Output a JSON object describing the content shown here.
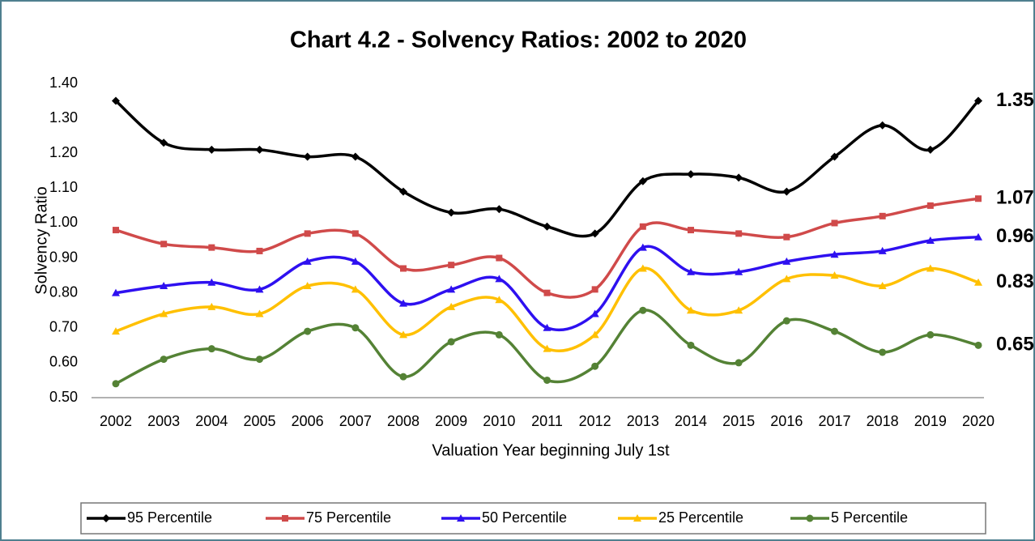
{
  "chart_data": {
    "type": "line",
    "title": "Chart 4.2 - Solvency Ratios: 2002 to 2020",
    "x_label": "Valuation Year beginning July 1st",
    "y_label": "Solvency Ratio",
    "categories": [
      "2002",
      "2003",
      "2004",
      "2005",
      "2006",
      "2007",
      "2008",
      "2009",
      "2010",
      "2011",
      "2012",
      "2013",
      "2014",
      "2015",
      "2016",
      "2017",
      "2018",
      "2019",
      "2020"
    ],
    "ylim": [
      0.5,
      1.4
    ],
    "yticks": [
      {
        "value": 0.5,
        "label": "0.50"
      },
      {
        "value": 0.6,
        "label": "0.60"
      },
      {
        "value": 0.7,
        "label": "0.70"
      },
      {
        "value": 0.8,
        "label": "0.80"
      },
      {
        "value": 0.9,
        "label": "0.90"
      },
      {
        "value": 1.0,
        "label": "1.00"
      },
      {
        "value": 1.1,
        "label": "1.10"
      },
      {
        "value": 1.2,
        "label": "1.20"
      },
      {
        "value": 1.3,
        "label": "1.30"
      },
      {
        "value": 1.4,
        "label": "1.40"
      }
    ],
    "grid": false,
    "smooth": true,
    "legend": "bottom",
    "series": [
      {
        "name": "95 Percentile",
        "color": "#000000",
        "marker": "diamond",
        "label_color": "#404040",
        "values": [
          1.35,
          1.23,
          1.21,
          1.21,
          1.19,
          1.19,
          1.09,
          1.03,
          1.04,
          0.99,
          0.97,
          1.12,
          1.14,
          1.13,
          1.09,
          1.19,
          1.28,
          1.21,
          1.35
        ]
      },
      {
        "name": "75 Percentile",
        "color": "#d04a4a",
        "marker": "square",
        "label_color": "#c00000",
        "values": [
          0.98,
          0.94,
          0.93,
          0.92,
          0.97,
          0.97,
          0.87,
          0.88,
          0.9,
          0.8,
          0.81,
          0.99,
          0.98,
          0.97,
          0.96,
          1.0,
          1.02,
          1.05,
          1.07
        ]
      },
      {
        "name": "50 Percentile",
        "color": "#2e10f0",
        "marker": "triangle",
        "label_color": "#2e10f0",
        "values": [
          0.8,
          0.82,
          0.83,
          0.81,
          0.89,
          0.89,
          0.77,
          0.81,
          0.84,
          0.7,
          0.74,
          0.93,
          0.86,
          0.86,
          0.89,
          0.91,
          0.92,
          0.95,
          0.96
        ]
      },
      {
        "name": "25 Percentile",
        "color": "#ffc000",
        "marker": "triangle",
        "label_color": "#ffc000",
        "values": [
          0.69,
          0.74,
          0.76,
          0.74,
          0.82,
          0.81,
          0.68,
          0.76,
          0.78,
          0.64,
          0.68,
          0.87,
          0.75,
          0.75,
          0.84,
          0.85,
          0.82,
          0.87,
          0.83
        ]
      },
      {
        "name": "5 Percentile",
        "color": "#548235",
        "marker": "circle",
        "label_color": "#548235",
        "values": [
          0.54,
          0.61,
          0.64,
          0.61,
          0.69,
          0.7,
          0.56,
          0.66,
          0.68,
          0.55,
          0.59,
          0.75,
          0.65,
          0.6,
          0.72,
          0.69,
          0.63,
          0.68,
          0.65
        ]
      }
    ]
  }
}
